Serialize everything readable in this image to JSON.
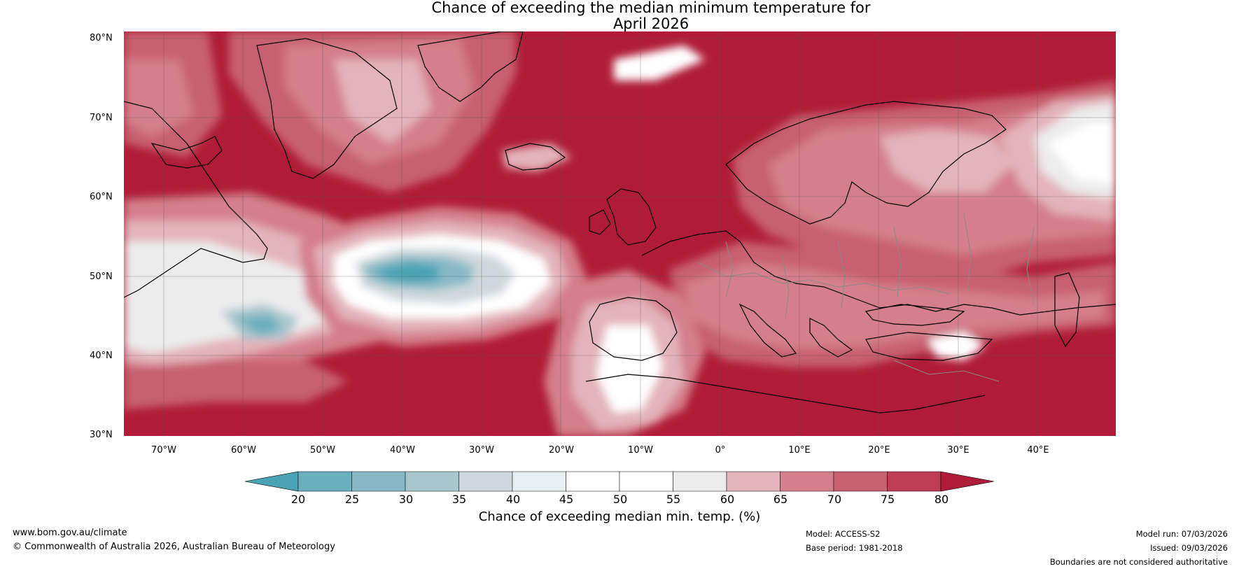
{
  "title": {
    "line1": "Chance of exceeding the median minimum temperature for",
    "line2": "April 2026"
  },
  "map": {
    "lat_labels": [
      "80°N",
      "70°N",
      "60°N",
      "50°N",
      "40°N",
      "30°N"
    ],
    "lon_labels": [
      "70°W",
      "60°W",
      "50°W",
      "40°W",
      "30°W",
      "20°W",
      "10°W",
      "0°",
      "10°E",
      "20°E",
      "30°E",
      "40°E"
    ]
  },
  "colorbar": {
    "ticks": [
      "20",
      "25",
      "30",
      "35",
      "40",
      "45",
      "50",
      "55",
      "60",
      "65",
      "70",
      "75",
      "80"
    ],
    "label": "Chance of exceeding median min. temp. (%)",
    "colors": [
      "#4aa3b4",
      "#6aafbd",
      "#87bac6",
      "#a7c6cd",
      "#cfd8dc",
      "#e8eff2",
      "#ffffff",
      "#ffffff",
      "#ececec",
      "#e3b4ba",
      "#d47f8b",
      "#c7616f",
      "#bd3e52",
      "#b01c37"
    ]
  },
  "footer": {
    "url": "www.bom.gov.au/climate",
    "copyright": "© Commonwealth of Australia 2026, Australian Bureau of Meteorology",
    "model": "Model: ACCESS-S2",
    "base_period": "Base period: 1981-2018",
    "model_run": "Model run: 07/03/2026",
    "issued": "Issued: 09/03/2026",
    "disclaimer": "Boundaries are not considered authoritative"
  }
}
